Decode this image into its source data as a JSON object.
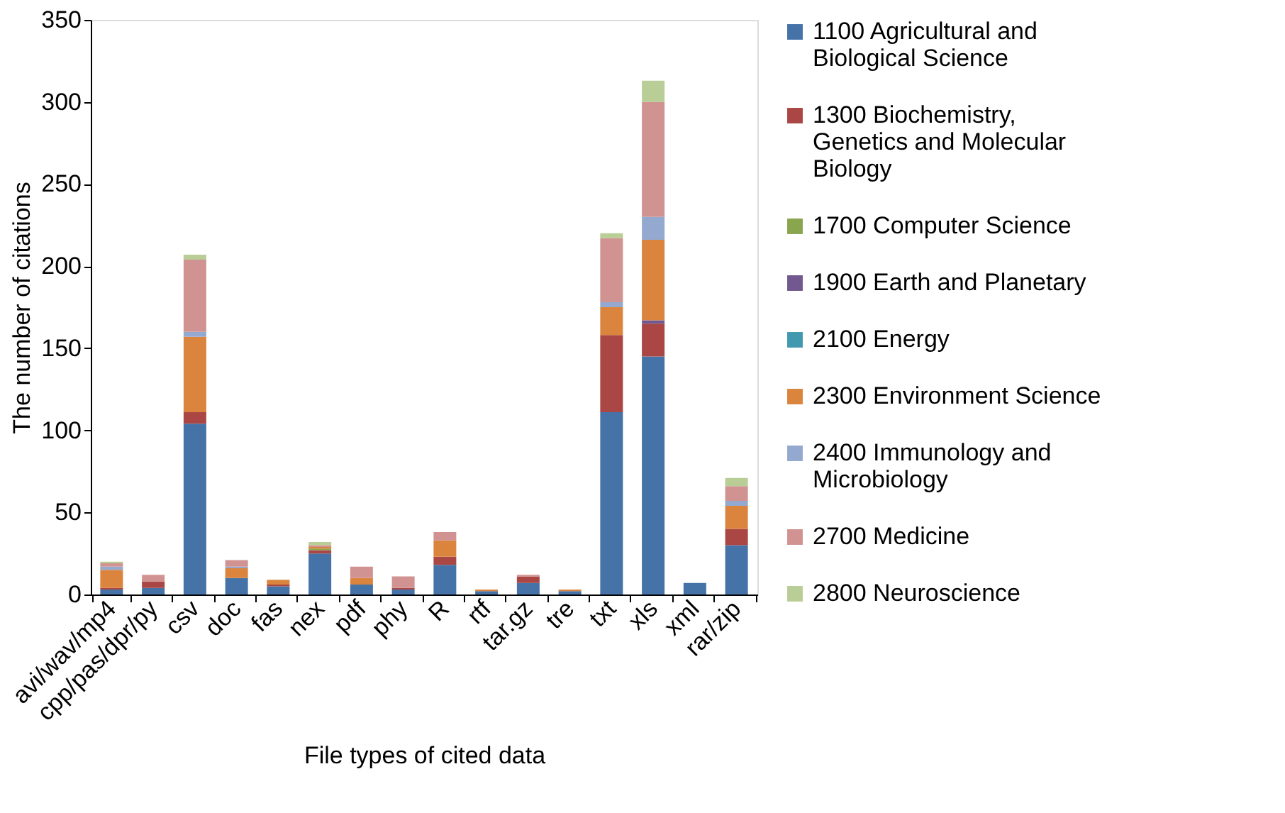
{
  "chart_data": {
    "type": "bar",
    "stacked": true,
    "xlabel": "File types of cited data",
    "ylabel": "The number of citations",
    "categories": [
      "avi/wav/mp4",
      "cpp/pas/dpr/py",
      "csv",
      "doc",
      "fas",
      "nex",
      "pdf",
      "phy",
      "R",
      "rtf",
      "tar.gz",
      "tre",
      "txt",
      "xls",
      "xml",
      "rar/zip"
    ],
    "series": [
      {
        "name": "1100 Agricultural and Biological Science",
        "color": "#4572a7",
        "values": [
          3,
          4,
          104,
          10,
          5,
          25,
          6,
          3,
          18,
          2,
          7,
          2,
          111,
          145,
          7,
          30
        ]
      },
      {
        "name": "1300 Biochemistry, Genetics and Molecular Biology",
        "color": "#aa4643",
        "values": [
          1,
          4,
          7,
          0,
          1,
          2,
          0,
          1,
          5,
          0,
          4,
          0,
          47,
          20,
          0,
          10
        ]
      },
      {
        "name": "1700 Computer Science",
        "color": "#89a54e",
        "values": [
          0,
          0,
          0,
          0,
          0,
          1,
          0,
          0,
          0,
          0,
          0,
          0,
          0,
          0,
          0,
          0
        ]
      },
      {
        "name": "1900 Earth and Planetary",
        "color": "#71588f",
        "values": [
          0,
          0,
          0,
          0,
          0,
          0,
          0,
          0,
          0,
          0,
          0,
          0,
          0,
          2,
          0,
          0
        ]
      },
      {
        "name": "2100 Energy",
        "color": "#4198af",
        "values": [
          0,
          0,
          0,
          0,
          0,
          0,
          0,
          0,
          0,
          0,
          0,
          0,
          0,
          0,
          0,
          0
        ]
      },
      {
        "name": "2300 Environment Science",
        "color": "#db843d",
        "values": [
          11,
          0,
          46,
          6,
          3,
          1,
          4,
          0,
          10,
          1,
          0,
          1,
          17,
          49,
          0,
          14
        ]
      },
      {
        "name": "2400 Immunology and Microbiology",
        "color": "#93a9cf",
        "values": [
          2,
          0,
          3,
          1,
          0,
          0,
          0,
          0,
          0,
          0,
          0,
          0,
          3,
          14,
          0,
          3
        ]
      },
      {
        "name": "2700 Medicine",
        "color": "#d19392",
        "values": [
          2,
          4,
          44,
          4,
          0,
          1,
          7,
          7,
          5,
          0,
          1,
          0,
          39,
          70,
          0,
          9
        ]
      },
      {
        "name": "2800 Neuroscience",
        "color": "#b9cd96",
        "values": [
          1,
          0,
          3,
          0,
          0,
          2,
          0,
          0,
          0,
          0,
          0,
          0,
          3,
          13,
          0,
          5
        ]
      }
    ],
    "ylim": [
      0,
      350
    ],
    "yticks": [
      0,
      50,
      100,
      150,
      200,
      250,
      300,
      350
    ],
    "grid": false,
    "legend": "right"
  }
}
